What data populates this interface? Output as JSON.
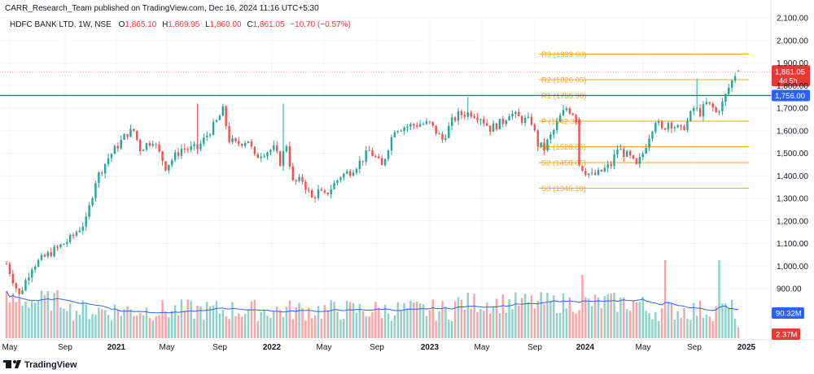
{
  "header": {
    "published": "CARR_Research_Team published on TradingView.com, Dec 16, 2024 11:16 UTC+5:30",
    "symbol": "HDFC BANK LTD, 1W, NSE",
    "o_label": "O",
    "o_value": "1,865.10",
    "h_label": "H",
    "h_value": "1,869.95",
    "l_label": "L",
    "l_value": "1,860.00",
    "c_label": "C",
    "c_value": "1,861.05",
    "change": "−10.70 (−0.57%)"
  },
  "watermark": {
    "logo_icon": "tradingview-logo-icon",
    "text": "TradingView"
  },
  "colors": {
    "up": "#26a69a",
    "down": "#ef5350",
    "up_volume": "#8fd0c8",
    "down_volume": "#f4a5a5",
    "pivot": "#f5a623",
    "blue_line": "#2962ff",
    "volume_ma": "#2962ff",
    "price_badge": "#e53935"
  },
  "chart_data": {
    "type": "candlestick",
    "title": "",
    "y_axis": {
      "range": [
        900,
        2100
      ],
      "ticks": [
        "2,100.00",
        "2,000.00",
        "1,900.00",
        "1,800.00",
        "1,700.00",
        "1,600.00",
        "1,500.00",
        "1,400.00",
        "1,300.00",
        "1,200.00",
        "1,100.00",
        "1,000.00",
        "900.00"
      ]
    },
    "x_axis": {
      "labels": [
        "May",
        "Sep",
        "2021",
        "May",
        "Sep",
        "2022",
        "May",
        "Sep",
        "2023",
        "May",
        "Sep",
        "2024",
        "May",
        "Sep",
        "2025"
      ]
    },
    "pivot_levels": [
      {
        "label": "R3 (1939.60)",
        "value": 1939.6
      },
      {
        "label": "R2 (1826.05)",
        "value": 1826.05
      },
      {
        "label": "R1 (1755.90)",
        "value": 1755.9
      },
      {
        "label": "P (1642.35)",
        "value": 1642.35
      },
      {
        "label": "S1 (1528.80)",
        "value": 1528.8
      },
      {
        "label": "S2 (1458.65)",
        "value": 1458.65
      },
      {
        "label": "S3 (1345.10)",
        "value": 1345.1
      }
    ],
    "horizontal_line": {
      "value": 1756.0,
      "label": "1,756.00"
    },
    "last_price": {
      "value": 1861.05,
      "label": "1,861.05",
      "countdown": "4d 5h"
    },
    "volume_badges": {
      "ma": "90.32M",
      "volume": "2.37M"
    },
    "price_anchors": [
      [
        0,
        1010
      ],
      [
        4,
        870
      ],
      [
        8,
        1000
      ],
      [
        14,
        1060
      ],
      [
        20,
        1120
      ],
      [
        25,
        1200
      ],
      [
        28,
        1380
      ],
      [
        32,
        1480
      ],
      [
        38,
        1590
      ],
      [
        40,
        1600
      ],
      [
        42,
        1520
      ],
      [
        46,
        1560
      ],
      [
        50,
        1440
      ],
      [
        55,
        1520
      ],
      [
        60,
        1520
      ],
      [
        63,
        1580
      ],
      [
        66,
        1640
      ],
      [
        68,
        1690
      ],
      [
        70,
        1560
      ],
      [
        72,
        1540
      ],
      [
        76,
        1560
      ],
      [
        78,
        1480
      ],
      [
        80,
        1500
      ],
      [
        84,
        1520
      ],
      [
        86,
        1460
      ],
      [
        88,
        1540
      ],
      [
        90,
        1370
      ],
      [
        93,
        1380
      ],
      [
        96,
        1300
      ],
      [
        98,
        1330
      ],
      [
        100,
        1310
      ],
      [
        105,
        1400
      ],
      [
        108,
        1420
      ],
      [
        111,
        1460
      ],
      [
        114,
        1510
      ],
      [
        116,
        1480
      ],
      [
        118,
        1440
      ],
      [
        120,
        1530
      ],
      [
        122,
        1610
      ],
      [
        126,
        1620
      ],
      [
        130,
        1630
      ],
      [
        133,
        1630
      ],
      [
        137,
        1560
      ],
      [
        140,
        1640
      ],
      [
        142,
        1670
      ],
      [
        146,
        1680
      ],
      [
        149,
        1660
      ],
      [
        152,
        1610
      ],
      [
        156,
        1640
      ],
      [
        158,
        1680
      ],
      [
        162,
        1650
      ],
      [
        165,
        1640
      ],
      [
        167,
        1540
      ],
      [
        169,
        1520
      ],
      [
        170,
        1550
      ],
      [
        172,
        1600
      ],
      [
        174,
        1660
      ],
      [
        176,
        1700
      ],
      [
        178,
        1680
      ],
      [
        179,
        1650
      ],
      [
        180,
        1450
      ],
      [
        182,
        1420
      ],
      [
        184,
        1400
      ],
      [
        186,
        1410
      ],
      [
        188,
        1430
      ],
      [
        190,
        1450
      ],
      [
        192,
        1520
      ],
      [
        194,
        1500
      ],
      [
        196,
        1480
      ],
      [
        198,
        1440
      ],
      [
        200,
        1500
      ],
      [
        202,
        1580
      ],
      [
        204,
        1650
      ],
      [
        206,
        1600
      ],
      [
        208,
        1640
      ],
      [
        210,
        1620
      ],
      [
        212,
        1600
      ],
      [
        214,
        1640
      ],
      [
        216,
        1700
      ],
      [
        218,
        1680
      ],
      [
        220,
        1720
      ],
      [
        222,
        1700
      ],
      [
        223,
        1680
      ],
      [
        225,
        1720
      ],
      [
        227,
        1790
      ],
      [
        229,
        1850
      ],
      [
        230,
        1866
      ]
    ],
    "volume_spikes": [
      [
        181,
        2.6
      ],
      [
        189,
        1.8
      ],
      [
        200,
        1.7
      ],
      [
        207,
        3.2
      ],
      [
        224,
        3.2
      ]
    ]
  }
}
